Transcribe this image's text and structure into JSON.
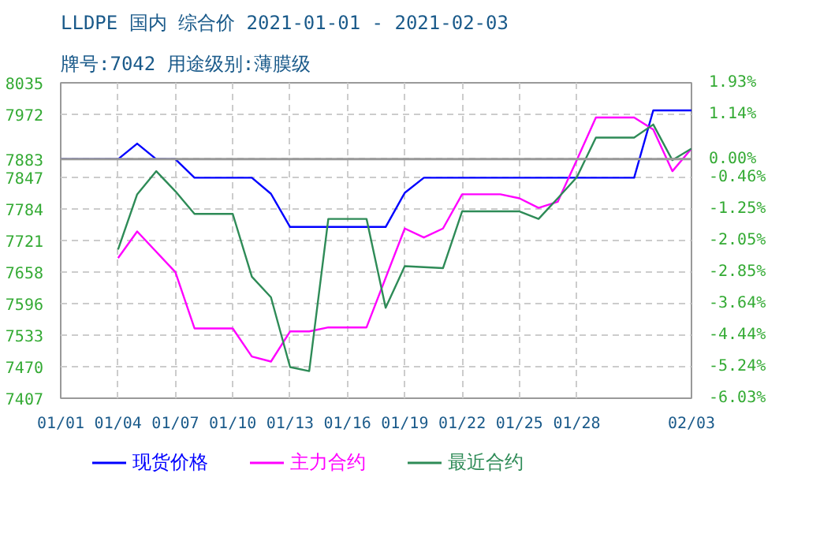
{
  "chart_data": {
    "type": "line",
    "title": "LLDPE 国内 综合价 2021-01-01 - 2021-02-03",
    "subtitle": "牌号:7042 用途级别:薄膜级",
    "xlim": [
      "2021-01-01",
      "2021-02-03"
    ],
    "xticks": [
      {
        "value": "2021-01-01",
        "label": "01/01"
      },
      {
        "value": "2021-01-04",
        "label": "01/04"
      },
      {
        "value": "2021-01-07",
        "label": "01/07"
      },
      {
        "value": "2021-01-10",
        "label": "01/10"
      },
      {
        "value": "2021-01-13",
        "label": "01/13"
      },
      {
        "value": "2021-01-16",
        "label": "01/16"
      },
      {
        "value": "2021-01-19",
        "label": "01/19"
      },
      {
        "value": "2021-01-22",
        "label": "01/22"
      },
      {
        "value": "2021-01-25",
        "label": "01/25"
      },
      {
        "value": "2021-01-28",
        "label": "01/28"
      },
      {
        "value": "2021-02-03",
        "label": "02/03"
      }
    ],
    "ylim": [
      7407,
      8035
    ],
    "yticks": [
      7407,
      7470,
      7533,
      7596,
      7658,
      7721,
      7784,
      7847,
      7883,
      7972,
      8035
    ],
    "y2lim": [
      -6.03,
      1.93
    ],
    "y2ticks": [
      {
        "value": -6.03,
        "label": "-6.03%"
      },
      {
        "value": -5.24,
        "label": "-5.24%"
      },
      {
        "value": -4.44,
        "label": "-4.44%"
      },
      {
        "value": -3.64,
        "label": "-3.64%"
      },
      {
        "value": -2.85,
        "label": "-2.85%"
      },
      {
        "value": -2.05,
        "label": "-2.05%"
      },
      {
        "value": -1.25,
        "label": "-1.25%"
      },
      {
        "value": -0.46,
        "label": "-0.46%"
      },
      {
        "value": 0,
        "label": "0.00%"
      },
      {
        "value": 1.14,
        "label": "1.14%"
      },
      {
        "value": 1.93,
        "label": "1.93%"
      }
    ],
    "ref_lines": [
      {
        "axis": "y",
        "value": 7883,
        "label": null,
        "color": "#999999"
      }
    ],
    "grid": true,
    "legend": "bottom",
    "line_style": "solid",
    "series": [
      {
        "name": "现货价格",
        "color": "#0000ff",
        "x": [
          "2021-01-01",
          "2021-01-04",
          "2021-01-05",
          "2021-01-06",
          "2021-01-07",
          "2021-01-08",
          "2021-01-11",
          "2021-01-12",
          "2021-01-13",
          "2021-01-18",
          "2021-01-19",
          "2021-01-20",
          "2021-01-31",
          "2021-02-01",
          "2021-02-03"
        ],
        "values": [
          7883,
          7883,
          7914,
          7883,
          7883,
          7846,
          7846,
          7814,
          7748,
          7748,
          7816,
          7846,
          7846,
          7980,
          7980
        ]
      },
      {
        "name": "主力合约",
        "color": "#ff00ff",
        "x": [
          "2021-01-04",
          "2021-01-05",
          "2021-01-07",
          "2021-01-08",
          "2021-01-10",
          "2021-01-11",
          "2021-01-12",
          "2021-01-13",
          "2021-01-14",
          "2021-01-15",
          "2021-01-17",
          "2021-01-19",
          "2021-01-20",
          "2021-01-21",
          "2021-01-22",
          "2021-01-24",
          "2021-01-25",
          "2021-01-26",
          "2021-01-27",
          "2021-01-28",
          "2021-01-29",
          "2021-01-31",
          "2021-02-01",
          "2021-02-02",
          "2021-02-03"
        ],
        "values": [
          7686,
          7739,
          7658,
          7546,
          7546,
          7490,
          7480,
          7540,
          7540,
          7548,
          7548,
          7745,
          7727,
          7745,
          7813,
          7813,
          7805,
          7786,
          7798,
          7881,
          7966,
          7966,
          7942,
          7859,
          7904
        ]
      },
      {
        "name": "最近合约",
        "color": "#2e8b57",
        "x": [
          "2021-01-04",
          "2021-01-05",
          "2021-01-06",
          "2021-01-07",
          "2021-01-08",
          "2021-01-10",
          "2021-01-11",
          "2021-01-12",
          "2021-01-13",
          "2021-01-14",
          "2021-01-15",
          "2021-01-17",
          "2021-01-18",
          "2021-01-19",
          "2021-01-21",
          "2021-01-22",
          "2021-01-25",
          "2021-01-26",
          "2021-01-27",
          "2021-01-28",
          "2021-01-29",
          "2021-01-31",
          "2021-02-01",
          "2021-02-02",
          "2021-02-03"
        ],
        "values": [
          7703,
          7813,
          7859,
          7819,
          7774,
          7774,
          7649,
          7608,
          7469,
          7461,
          7764,
          7764,
          7587,
          7670,
          7666,
          7779,
          7779,
          7764,
          7805,
          7847,
          7926,
          7926,
          7952,
          7881,
          7904
        ]
      }
    ]
  }
}
